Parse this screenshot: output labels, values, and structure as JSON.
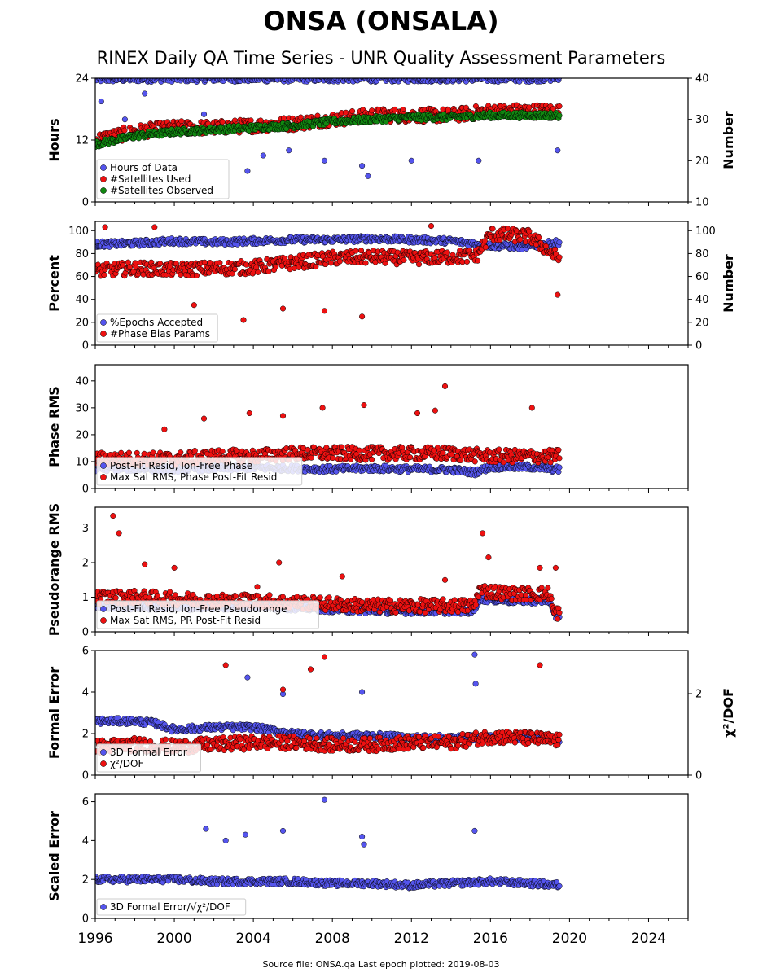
{
  "title": "ONSA (ONSALA)",
  "subtitle": "RINEX Daily QA Time Series - UNR Quality Assessment Parameters",
  "footer": "Source file: ONSA.qa Last epoch plotted: 2019-08-03",
  "colors": {
    "blue": "#5555ee",
    "red": "#ee1111",
    "green": "#118811",
    "edge": "#000000"
  },
  "chart_data": [
    {
      "type": "scatter",
      "ylabel": "Hours",
      "ylabel_right": "Number",
      "x_range": [
        1996,
        2026
      ],
      "ylim": [
        0,
        24
      ],
      "ylim_right": [
        10,
        40
      ],
      "yticks": [
        0,
        12,
        24
      ],
      "yticks_right": [
        10,
        20,
        30,
        40
      ],
      "legend": "lower-left",
      "series": [
        {
          "name": "Hours of Data",
          "color": "blue",
          "axis": "left",
          "x": [
            1996.0,
            1998.0,
            2000.0,
            2002.0,
            2004.0,
            2006.0,
            2008.0,
            2010.0,
            2012.0,
            2014.0,
            2016.0,
            2018.0,
            2019.5
          ],
          "y": [
            23.8,
            23.9,
            23.9,
            23.9,
            23.9,
            23.9,
            23.9,
            23.9,
            23.9,
            23.9,
            23.9,
            23.9,
            24.0
          ],
          "outliers_x": [
            1996.3,
            1997.5,
            1998.5,
            2001.5,
            2003.7,
            2004.5,
            2005.8,
            2007.6,
            2009.5,
            2009.8,
            2012.0,
            2015.4,
            2019.4
          ],
          "outliers_y": [
            19.5,
            16.0,
            21.0,
            17.0,
            6.0,
            9.0,
            10.0,
            8.0,
            7.0,
            5.0,
            8.0,
            8.0,
            10.0
          ]
        },
        {
          "name": "#Satellites Used",
          "color": "red",
          "axis": "right",
          "x": [
            1996.0,
            1997.0,
            1998.0,
            2000.0,
            2002.0,
            2004.0,
            2006.0,
            2008.0,
            2010.0,
            2012.0,
            2014.0,
            2016.0,
            2018.0,
            2019.5
          ],
          "y": [
            25,
            26,
            27,
            28,
            28,
            28.5,
            29,
            30,
            31,
            31,
            31,
            32,
            32,
            32
          ]
        },
        {
          "name": "#Satellites Observed",
          "color": "green",
          "axis": "right",
          "x": [
            1996.0,
            1997.0,
            1998.0,
            2000.0,
            2002.0,
            2004.0,
            2006.0,
            2008.0,
            2010.0,
            2012.0,
            2014.0,
            2016.0,
            2018.0,
            2019.5
          ],
          "y": [
            24,
            25,
            26,
            27,
            27.5,
            28,
            28.5,
            29.5,
            30,
            30.5,
            30.5,
            31,
            31,
            31
          ]
        }
      ]
    },
    {
      "type": "scatter",
      "ylabel": "Percent",
      "ylabel_right": "Number",
      "x_range": [
        1996,
        2026
      ],
      "ylim": [
        0,
        108
      ],
      "ylim_right": [
        0,
        108
      ],
      "yticks": [
        0,
        20,
        40,
        60,
        80,
        100
      ],
      "yticks_right": [
        0,
        20,
        40,
        60,
        80,
        100
      ],
      "legend": "lower-left",
      "series": [
        {
          "name": "%Epochs Accepted",
          "color": "blue",
          "axis": "left",
          "x": [
            1996.0,
            1998.0,
            2000.0,
            2002.0,
            2004.0,
            2006.0,
            2008.0,
            2010.0,
            2012.0,
            2014.0,
            2016.0,
            2018.0,
            2019.5
          ],
          "y": [
            88,
            89,
            91,
            90,
            91,
            92,
            92,
            93,
            92,
            91,
            87,
            86,
            90
          ]
        },
        {
          "name": "#Phase Bias Params",
          "color": "red",
          "axis": "right",
          "x": [
            1996.0,
            1998.0,
            2000.0,
            2002.0,
            2004.0,
            2006.0,
            2008.0,
            2010.0,
            2012.0,
            2014.0,
            2015.3,
            2016.0,
            2018.0,
            2019.5
          ],
          "y": [
            65,
            67,
            66,
            67,
            68,
            72,
            76,
            77,
            76,
            77,
            78,
            97,
            95,
            75
          ],
          "outliers_x": [
            1996.5,
            1999.0,
            2001.0,
            2003.5,
            2005.5,
            2007.6,
            2009.5,
            2013.0,
            2019.4
          ],
          "outliers_y": [
            103,
            103,
            35,
            22,
            32,
            30,
            25,
            104,
            44
          ]
        }
      ]
    },
    {
      "type": "scatter",
      "ylabel": "Phase RMS",
      "x_range": [
        1996,
        2026
      ],
      "ylim": [
        0,
        46
      ],
      "yticks": [
        0,
        10,
        20,
        30,
        40
      ],
      "legend": "lower-left",
      "series": [
        {
          "name": "Post-Fit Resid, Ion-Free Phase",
          "color": "blue",
          "x": [
            1996.0,
            1998.0,
            2000.0,
            2002.0,
            2004.0,
            2006.0,
            2008.0,
            2010.0,
            2012.0,
            2014.0,
            2015.2,
            2016.0,
            2018.0,
            2019.5
          ],
          "y": [
            7.5,
            7.5,
            7.2,
            7.5,
            7.8,
            7.5,
            7.2,
            7.5,
            7.2,
            7.0,
            6.0,
            8.0,
            8.0,
            7.0
          ]
        },
        {
          "name": "Max Sat RMS, Phase Post-Fit Resid",
          "color": "red",
          "x": [
            1996.0,
            1998.0,
            2000.0,
            2002.0,
            2004.0,
            2006.0,
            2008.0,
            2010.0,
            2012.0,
            2014.0,
            2016.0,
            2018.0,
            2019.5
          ],
          "y": [
            11,
            11,
            11,
            12,
            12,
            13,
            13,
            13,
            13,
            13,
            12,
            12,
            12
          ],
          "outliers_x": [
            1999.5,
            2001.5,
            2003.8,
            2005.5,
            2007.5,
            2009.6,
            2012.3,
            2013.2,
            2013.7,
            2018.1
          ],
          "outliers_y": [
            22,
            26,
            28,
            27,
            30,
            31,
            28,
            29,
            38,
            30
          ]
        }
      ]
    },
    {
      "type": "scatter",
      "ylabel": "Pseudorange RMS",
      "x_range": [
        1996,
        2026
      ],
      "ylim": [
        0,
        3.6
      ],
      "yticks": [
        0,
        1,
        2,
        3
      ],
      "legend": "lower-left",
      "series": [
        {
          "name": "Post-Fit Resid, Ion-Free Pseudorange",
          "color": "blue",
          "x": [
            1996.0,
            1998.0,
            2000.0,
            2002.0,
            2004.0,
            2006.0,
            2008.0,
            2010.0,
            2012.0,
            2014.0,
            2015.2,
            2015.4,
            2017.0,
            2019.0,
            2019.2,
            2019.5
          ],
          "y": [
            0.75,
            0.72,
            0.7,
            0.72,
            0.72,
            0.7,
            0.65,
            0.6,
            0.6,
            0.6,
            0.6,
            0.95,
            0.9,
            0.9,
            0.45,
            0.45
          ]
        },
        {
          "name": "Max Sat RMS, PR Post-Fit Resid",
          "color": "red",
          "x": [
            1996.0,
            1998.0,
            2000.0,
            2002.0,
            2004.0,
            2006.0,
            2008.0,
            2010.0,
            2012.0,
            2014.0,
            2015.2,
            2015.4,
            2017.0,
            2019.0,
            2019.2,
            2019.5
          ],
          "y": [
            1.0,
            1.0,
            0.95,
            0.9,
            0.9,
            0.85,
            0.8,
            0.75,
            0.75,
            0.75,
            0.75,
            1.2,
            1.1,
            1.1,
            0.55,
            0.55
          ],
          "outliers_x": [
            1996.9,
            1997.2,
            1998.5,
            2000.0,
            2004.2,
            2005.3,
            2008.5,
            2013.7,
            2015.6,
            2015.9,
            2018.5,
            2019.3
          ],
          "outliers_y": [
            3.35,
            2.85,
            1.95,
            1.85,
            1.3,
            2.0,
            1.6,
            1.5,
            2.85,
            2.15,
            1.85,
            1.85
          ]
        }
      ]
    },
    {
      "type": "scatter",
      "ylabel": "Formal Error",
      "ylabel_right": "χ²/DOF",
      "x_range": [
        1996,
        2026
      ],
      "ylim": [
        0,
        6
      ],
      "ylim_right": [
        0,
        3.06
      ],
      "yticks": [
        0,
        2,
        4,
        6
      ],
      "yticks_right": [
        0,
        2
      ],
      "legend": "lower-left",
      "series": [
        {
          "name": "3D Formal Error",
          "color": "blue",
          "axis": "left",
          "x": [
            1996.0,
            1998.0,
            1999.0,
            2000.0,
            2002.0,
            2004.0,
            2006.0,
            2008.0,
            2010.0,
            2012.0,
            2014.0,
            2016.0,
            2018.0,
            2019.5
          ],
          "y": [
            2.6,
            2.6,
            2.5,
            2.2,
            2.3,
            2.3,
            2.0,
            1.9,
            1.9,
            1.8,
            1.8,
            1.8,
            1.8,
            1.7
          ],
          "outliers_x": [
            2003.7,
            2005.5,
            2009.5,
            2015.2,
            2015.25
          ],
          "outliers_y": [
            4.7,
            3.9,
            4.0,
            5.8,
            4.4
          ]
        },
        {
          "name": "χ²/DOF",
          "color": "red",
          "axis": "right",
          "x": [
            1996.0,
            1998.0,
            2000.0,
            2002.0,
            2004.0,
            2006.0,
            2008.0,
            2010.0,
            2012.0,
            2014.0,
            2016.0,
            2018.0,
            2019.5
          ],
          "y": [
            0.7,
            0.75,
            0.7,
            0.75,
            0.8,
            0.8,
            0.75,
            0.75,
            0.8,
            0.8,
            0.95,
            0.9,
            0.85
          ],
          "outliers_x": [
            2002.6,
            2005.5,
            2006.9,
            2007.6,
            2018.5
          ],
          "outliers_y": [
            2.7,
            2.1,
            2.6,
            2.9,
            2.7
          ]
        }
      ]
    },
    {
      "type": "scatter",
      "ylabel": "Scaled Error",
      "x_range": [
        1996,
        2026
      ],
      "ylim": [
        0,
        6.4
      ],
      "yticks": [
        0,
        2,
        4,
        6
      ],
      "legend": "lower-left",
      "series": [
        {
          "name": "3D Formal Error/√χ²/DOF",
          "color": "blue",
          "x": [
            1996.0,
            1998.0,
            2000.0,
            2002.0,
            2004.0,
            2006.0,
            2008.0,
            2010.0,
            2012.0,
            2014.0,
            2016.0,
            2018.0,
            2019.5
          ],
          "y": [
            2.0,
            2.0,
            2.0,
            1.9,
            1.9,
            1.9,
            1.8,
            1.8,
            1.7,
            1.8,
            1.9,
            1.8,
            1.7
          ],
          "outliers_x": [
            2001.6,
            2002.6,
            2003.6,
            2005.5,
            2007.6,
            2009.5,
            2009.6,
            2015.2
          ],
          "outliers_y": [
            4.6,
            4.0,
            4.3,
            4.5,
            6.1,
            4.2,
            3.8,
            4.5
          ]
        }
      ]
    }
  ],
  "x_ticks": [
    "1996",
    "2000",
    "2004",
    "2008",
    "2012",
    "2016",
    "2020",
    "2024"
  ]
}
